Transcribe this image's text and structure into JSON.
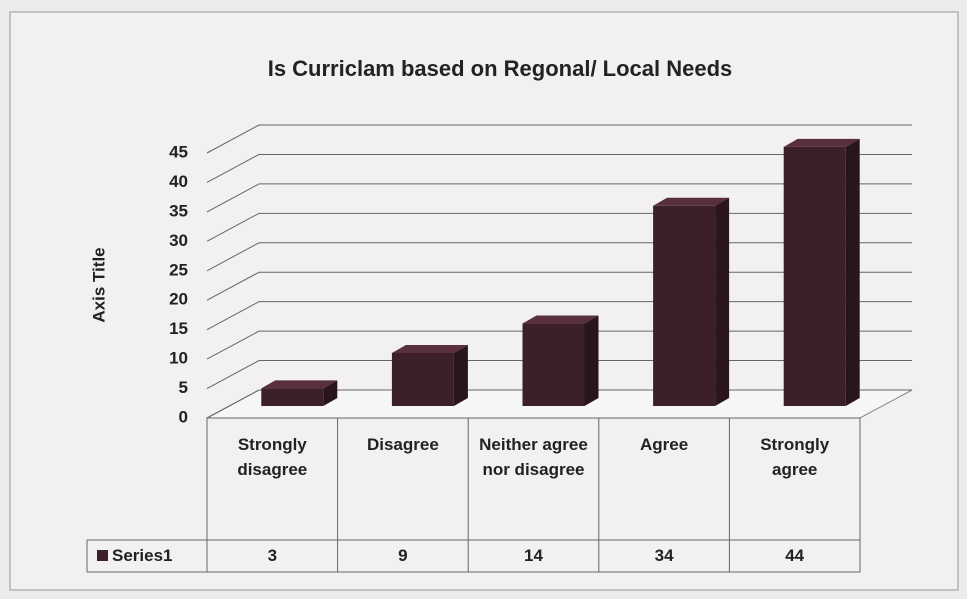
{
  "chart_data": {
    "type": "bar3d",
    "title": "Is Curriclam  based on Regonal/ Local Needs",
    "y_axis_label": "Axis Title",
    "categories": [
      "Strongly disagree",
      "Disagree",
      "Neither agree nor disagree",
      "Agree",
      "Strongly agree"
    ],
    "series": [
      {
        "name": "Series1",
        "color": "#3b1f2a",
        "values": [
          3,
          9,
          14,
          34,
          44
        ]
      }
    ],
    "ylim": [
      0,
      45
    ],
    "yticks": [
      0,
      5,
      10,
      15,
      20,
      25,
      30,
      35,
      40,
      45
    ],
    "grid": true
  }
}
